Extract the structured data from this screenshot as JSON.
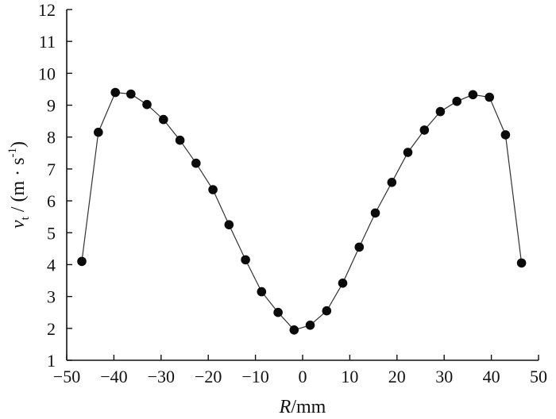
{
  "chart_data": {
    "type": "line",
    "xlabel": "R/mm",
    "ylabel": "v_t / (m·s^-1)",
    "xlabel_parts": {
      "var": "R",
      "unit": "/mm"
    },
    "ylabel_parts": {
      "var": "v",
      "sub": "t",
      "unit": " / (m · s",
      "sup": "-1",
      "close": ")"
    },
    "xlim": [
      -50,
      50
    ],
    "ylim": [
      1,
      12
    ],
    "xticks": [
      -50,
      -40,
      -30,
      -20,
      -10,
      0,
      10,
      20,
      30,
      40,
      50
    ],
    "yticks": [
      1,
      2,
      3,
      4,
      5,
      6,
      7,
      8,
      9,
      10,
      11,
      12
    ],
    "xtick_labels": [
      "−50",
      "−40",
      "−30",
      "−20",
      "−10",
      "0",
      "10",
      "20",
      "30",
      "40",
      "50"
    ],
    "ytick_labels": [
      "1",
      "2",
      "3",
      "4",
      "5",
      "6",
      "7",
      "8",
      "9",
      "10",
      "11",
      "12"
    ],
    "grid": false,
    "series": [
      {
        "marker": "filled-circle",
        "color": "#0a0a0a",
        "line_color": "#333333",
        "x": [
          -46.8,
          -43.3,
          -39.7,
          -36.4,
          -33.0,
          -29.5,
          -26.0,
          -22.6,
          -19.0,
          -15.6,
          -12.1,
          -8.7,
          -5.2,
          -1.8,
          1.6,
          5.1,
          8.5,
          12.0,
          15.4,
          18.9,
          22.3,
          25.8,
          29.2,
          32.7,
          36.1,
          39.6,
          43.0,
          46.4
        ],
        "y": [
          4.1,
          8.15,
          9.4,
          9.35,
          9.02,
          8.55,
          7.9,
          7.18,
          6.35,
          5.25,
          4.15,
          3.15,
          2.5,
          1.95,
          2.1,
          2.55,
          3.42,
          4.55,
          5.62,
          6.58,
          7.52,
          8.22,
          8.8,
          9.12,
          9.33,
          9.25,
          8.07,
          4.05
        ]
      }
    ]
  }
}
